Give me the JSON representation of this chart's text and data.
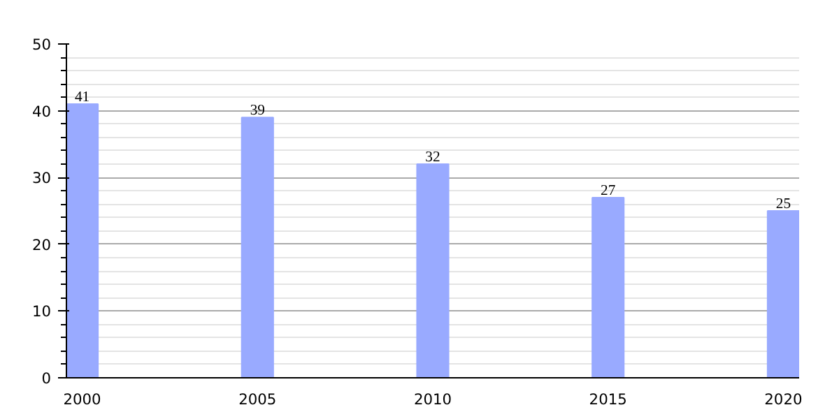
{
  "chart_data": {
    "type": "bar",
    "categories": [
      "2000",
      "2005",
      "2010",
      "2015",
      "2020"
    ],
    "values": [
      41,
      39,
      32,
      27,
      25
    ],
    "color": "#99aaff",
    "ylim": [
      0,
      50
    ],
    "yticks": [
      0,
      10,
      20,
      30,
      40,
      50
    ],
    "grid": "y",
    "data_labels": true
  }
}
